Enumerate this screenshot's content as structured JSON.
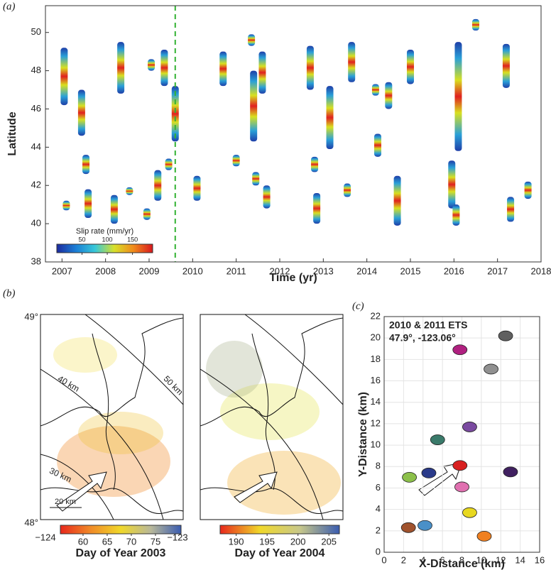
{
  "chart_data": [
    {
      "type": "range",
      "panel": "(a)",
      "xlabel": "Time (yr)",
      "ylabel": "Latitude",
      "xlim": [
        2006.62,
        2018
      ],
      "xticks": [
        2007,
        2008,
        2009,
        2010,
        2011,
        2012,
        2013,
        2014,
        2015,
        2016,
        2017,
        2018
      ],
      "ylim": [
        38,
        51.4
      ],
      "yticks": [
        38,
        40,
        42,
        44,
        46,
        48,
        50
      ],
      "vline": 2009.6,
      "vline_color": "#33b233",
      "x": [
        2007.05,
        2007.1,
        2007.45,
        2007.55,
        2007.6,
        2008.2,
        2008.35,
        2008.55,
        2008.95,
        2009.05,
        2009.2,
        2009.35,
        2009.45,
        2009.6,
        2010.1,
        2010.7,
        2011.0,
        2011.35,
        2011.4,
        2011.45,
        2011.6,
        2011.7,
        2012.7,
        2012.8,
        2012.85,
        2013.15,
        2013.55,
        2013.65,
        2014.2,
        2014.25,
        2014.5,
        2014.7,
        2015.0,
        2015.95,
        2016.05,
        2016.1,
        2016.5,
        2017.2,
        2017.3,
        2017.7
      ],
      "low": [
        46.2,
        40.7,
        44.6,
        42.6,
        40.3,
        40.0,
        46.8,
        41.5,
        40.2,
        48.0,
        41.2,
        47.2,
        42.8,
        44.3,
        41.2,
        47.2,
        43.0,
        49.3,
        44.3,
        42.0,
        46.8,
        40.8,
        47.0,
        42.7,
        40.0,
        43.9,
        41.4,
        47.4,
        46.7,
        43.5,
        46.0,
        39.9,
        47.3,
        40.8,
        39.9,
        43.8,
        50.1,
        47.1,
        40.1,
        41.3
      ],
      "high": [
        49.2,
        41.2,
        47.0,
        43.6,
        41.8,
        41.5,
        49.5,
        41.9,
        40.8,
        48.6,
        42.8,
        49.1,
        43.4,
        47.2,
        42.5,
        49.0,
        43.6,
        49.9,
        48.0,
        42.7,
        49.0,
        42.0,
        49.3,
        43.5,
        41.6,
        47.2,
        42.1,
        49.5,
        47.3,
        44.7,
        47.4,
        42.5,
        49.1,
        43.3,
        41.0,
        49.5,
        50.7,
        49.4,
        41.4,
        42.2
      ],
      "colorbar": {
        "label": "Slip rate (mm/yr)",
        "clim": [
          0,
          190
        ],
        "ticks": [
          50,
          100,
          150
        ],
        "colors": [
          "#1c2a9e",
          "#1b7fd6",
          "#38c8d8",
          "#d8e02a",
          "#f08a1c",
          "#d8181e"
        ]
      }
    },
    {
      "type": "map",
      "panel": "(b)",
      "lat_labels": [
        "49°",
        "48°"
      ],
      "lon_labels": [
        "−124",
        "−123"
      ],
      "contour_labels": [
        "50 km",
        "40 km",
        "30 km"
      ],
      "scale_label": "20 km",
      "colorbars": [
        {
          "label": "Day of Year 2003",
          "clim": [
            55.3,
            80.3
          ],
          "ticks": [
            60,
            65,
            70,
            75
          ],
          "colors": [
            "#e8281c",
            "#f08a28",
            "#f0d82a",
            "#b8b89a",
            "#3a5cb0"
          ]
        },
        {
          "label": "Day of Year 2004",
          "clim": [
            187.4,
            206.7
          ],
          "ticks": [
            190,
            195,
            200,
            205
          ],
          "colors": [
            "#e8281c",
            "#f0d82a",
            "#c8c88a",
            "#3a5cb0"
          ]
        }
      ]
    },
    {
      "type": "scatter",
      "panel": "(c)",
      "title": "2010 & 2011 ETS",
      "subtitle": "47.9°, -123.06°",
      "xlabel": "X-Distance (km)",
      "ylabel": "Y-Distance (km)",
      "grid": true,
      "xlim": [
        0,
        16
      ],
      "xticks": [
        0,
        2,
        4,
        6,
        8,
        10,
        12,
        14,
        16
      ],
      "ylim": [
        0,
        22
      ],
      "yticks": [
        0,
        2,
        4,
        6,
        8,
        10,
        12,
        14,
        16,
        18,
        20,
        22
      ],
      "x": [
        2.5,
        4.2,
        2.6,
        4.6,
        5.5,
        7.8,
        8.0,
        8.8,
        10.3,
        8.8,
        11.0,
        7.8,
        12.5,
        13.0
      ],
      "y": [
        2.3,
        2.5,
        7.0,
        7.4,
        10.5,
        8.1,
        6.1,
        3.7,
        1.5,
        11.7,
        17.1,
        18.9,
        20.2,
        7.5
      ],
      "colors": [
        "#a0522d",
        "#4a90c8",
        "#8cc04a",
        "#2a3a8a",
        "#3a7a6a",
        "#d82020",
        "#e070b0",
        "#e8d820",
        "#f08020",
        "#7a4aa0",
        "#909090",
        "#b02080",
        "#606060",
        "#402060"
      ]
    }
  ]
}
